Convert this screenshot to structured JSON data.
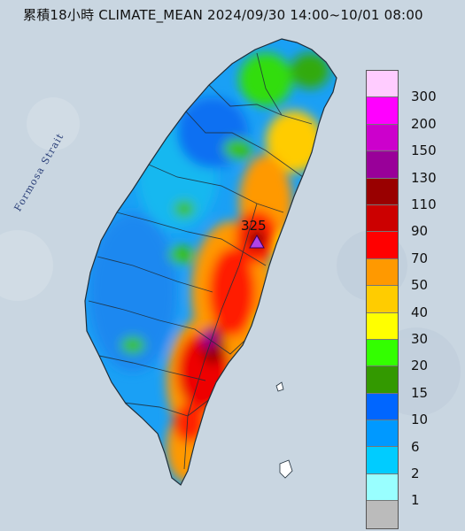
{
  "title": "累積18小時 CLIMATE_MEAN 2024/09/30 14:00~10/01 08:00",
  "strait_label": "Formosa Strait",
  "peak": {
    "label": "325",
    "value": 325
  },
  "colors": {
    "sea": "#c9d6e1",
    "peak_marker": "#b044e8"
  },
  "legend": {
    "unit": "",
    "levels": [
      {
        "label": "300",
        "color": "#ffccff"
      },
      {
        "label": "200",
        "color": "#ff00ff"
      },
      {
        "label": "150",
        "color": "#cc00cc"
      },
      {
        "label": "130",
        "color": "#990099"
      },
      {
        "label": "110",
        "color": "#990000"
      },
      {
        "label": "90",
        "color": "#cc0000"
      },
      {
        "label": "70",
        "color": "#ff0000"
      },
      {
        "label": "50",
        "color": "#ff9900"
      },
      {
        "label": "40",
        "color": "#ffcc00"
      },
      {
        "label": "30",
        "color": "#ffff00"
      },
      {
        "label": "20",
        "color": "#33ff00"
      },
      {
        "label": "15",
        "color": "#339900"
      },
      {
        "label": "10",
        "color": "#0066ff"
      },
      {
        "label": "6",
        "color": "#0099ff"
      },
      {
        "label": "2",
        "color": "#00ccff"
      },
      {
        "label": "1",
        "color": "#99ffff"
      },
      {
        "label": "",
        "color": "#bbbbbb"
      }
    ]
  }
}
